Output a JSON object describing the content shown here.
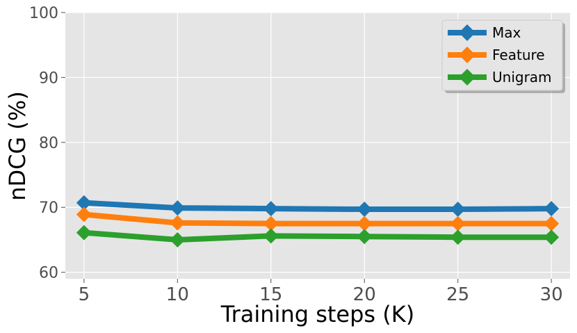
{
  "chart_data": {
    "type": "line",
    "title": "",
    "xlabel": "Training steps (K)",
    "ylabel": "nDCG (%)",
    "x": [
      5,
      10,
      15,
      20,
      25,
      30
    ],
    "x_ticks": [
      "5",
      "10",
      "15",
      "20",
      "25",
      "30"
    ],
    "y_ticks": [
      "60",
      "70",
      "80",
      "90",
      "100"
    ],
    "xlim": [
      4,
      31
    ],
    "ylim": [
      59,
      100
    ],
    "grid": true,
    "legend_position": "top-right",
    "marker": "diamond",
    "background": "#e5e5e5",
    "series": [
      {
        "name": "Max",
        "color": "#1f77b4",
        "values": [
          70.7,
          69.9,
          69.8,
          69.7,
          69.7,
          69.8
        ]
      },
      {
        "name": "Feature",
        "color": "#ff7f0e",
        "values": [
          68.9,
          67.6,
          67.5,
          67.5,
          67.5,
          67.5
        ]
      },
      {
        "name": "Unigram",
        "color": "#2ca02c",
        "values": [
          66.1,
          65.0,
          65.6,
          65.5,
          65.4,
          65.4
        ]
      }
    ]
  }
}
